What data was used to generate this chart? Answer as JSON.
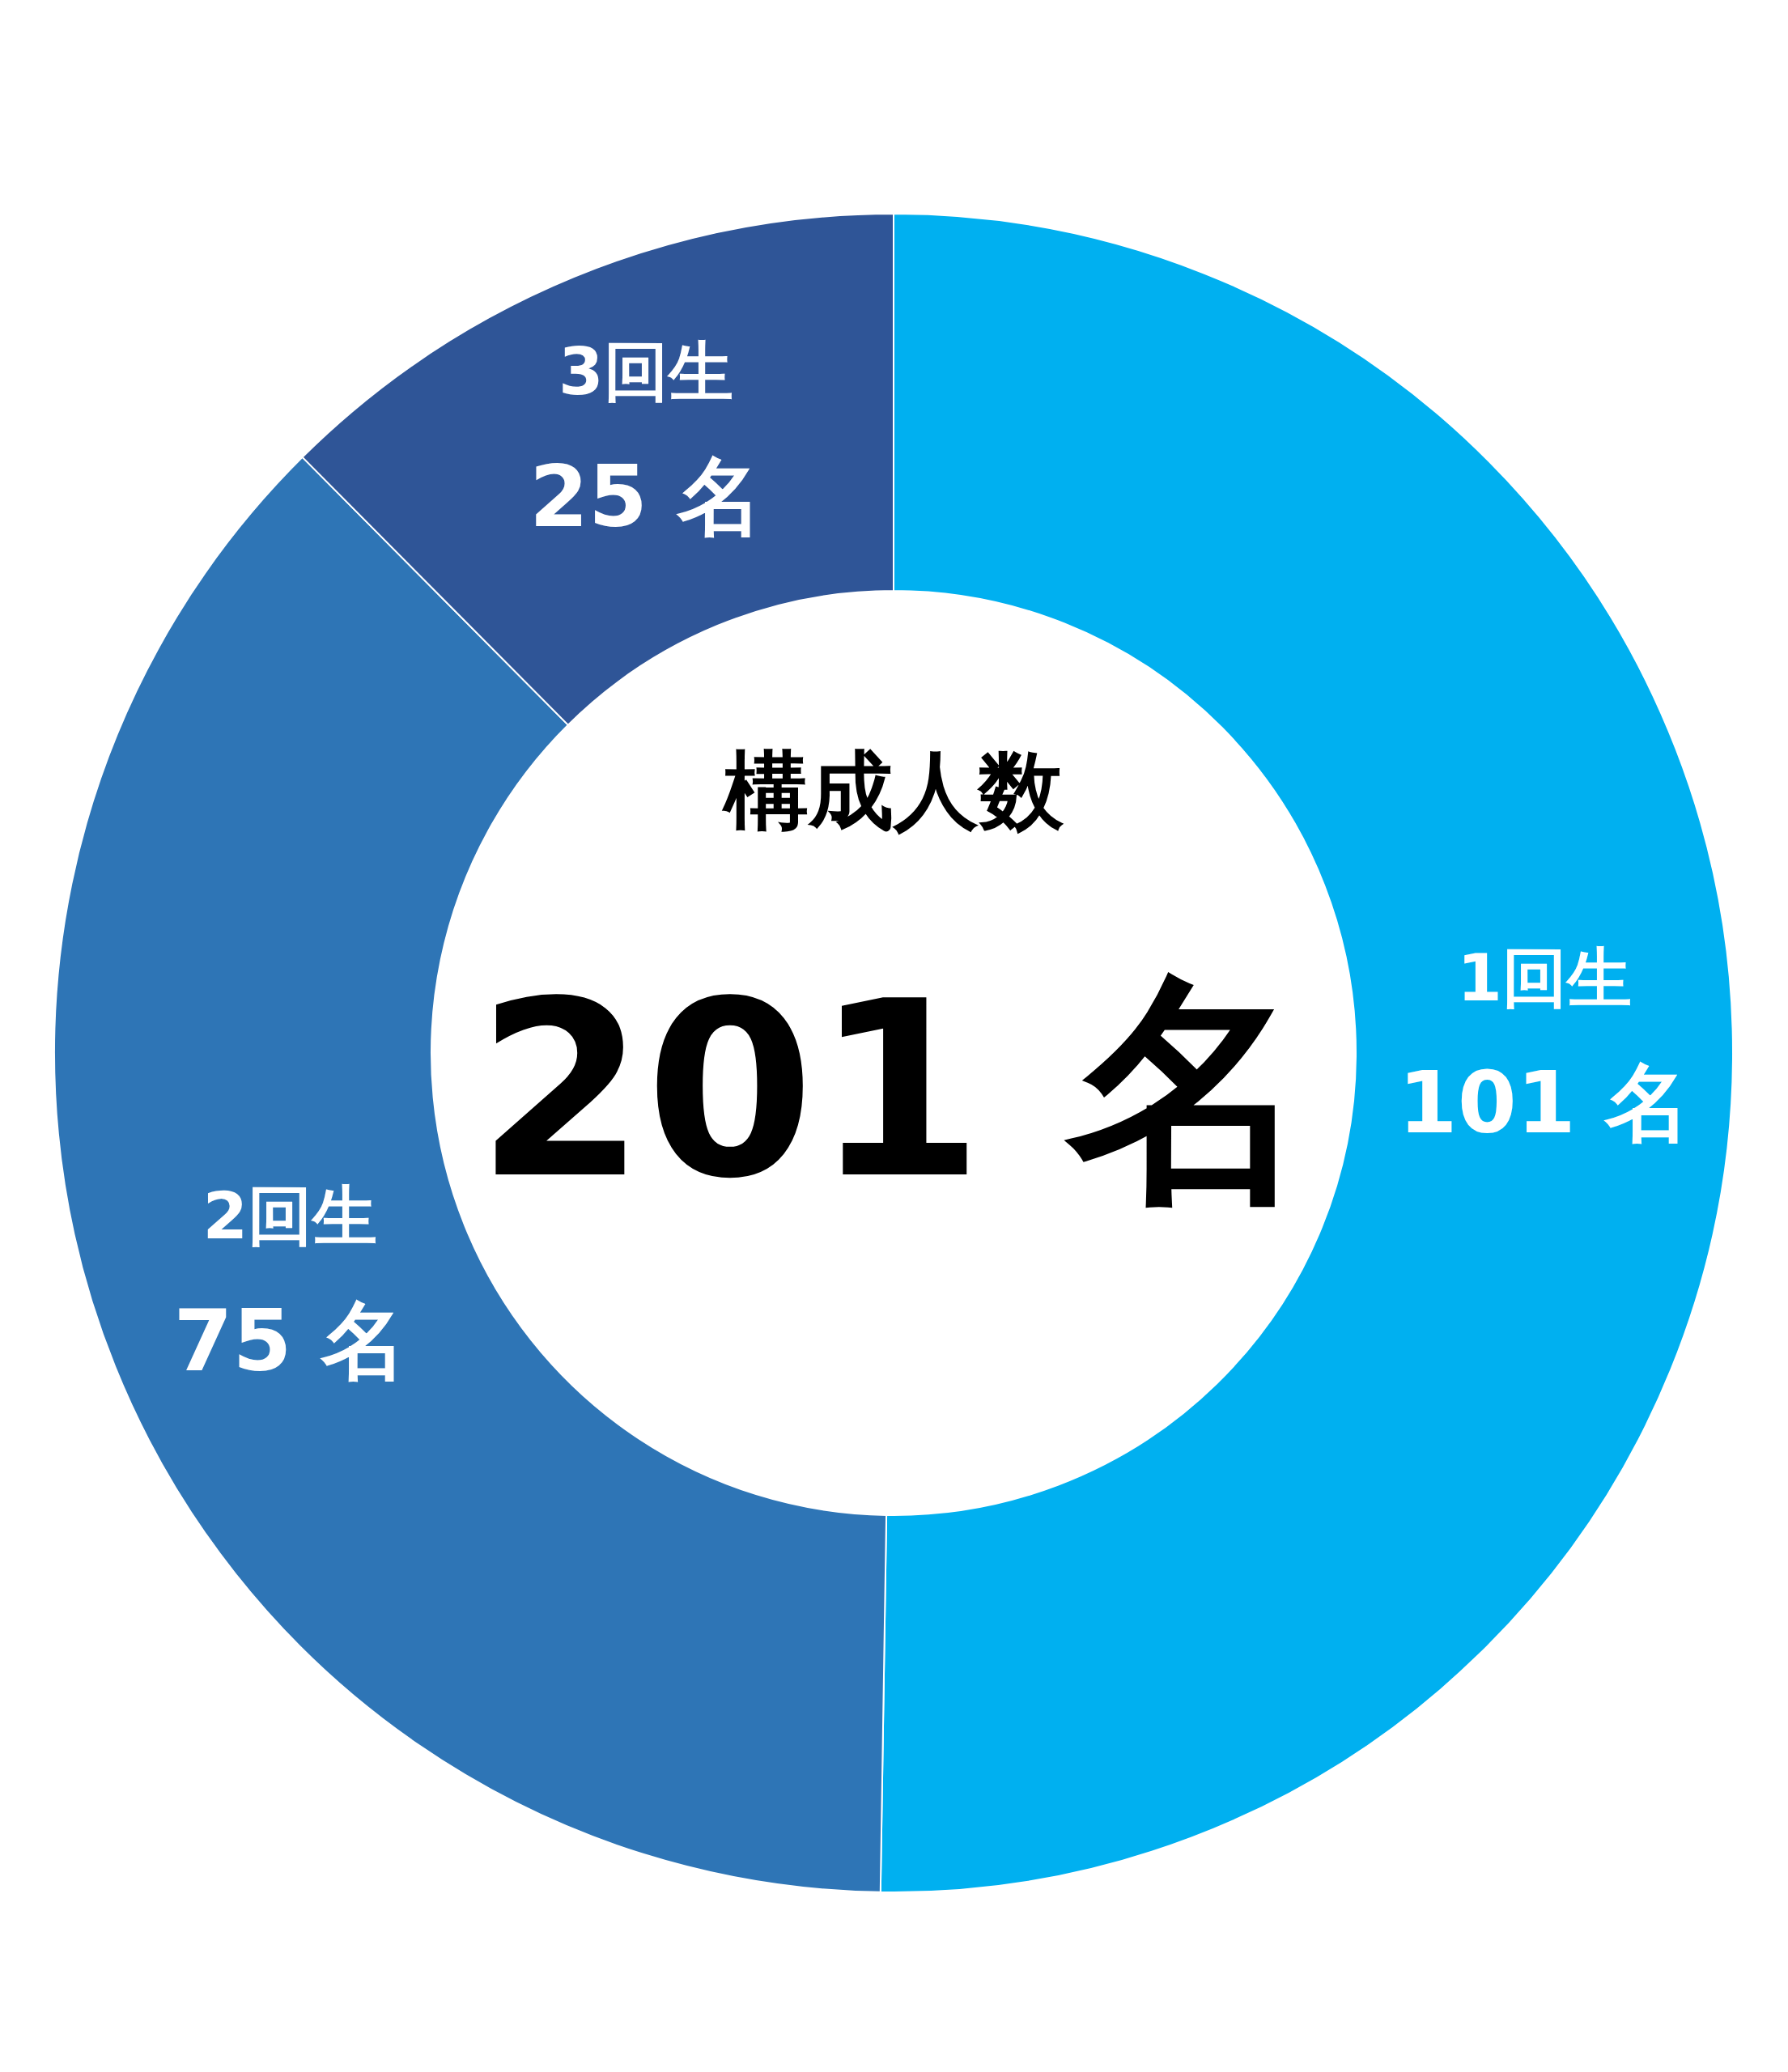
{
  "chart_data": {
    "type": "donut",
    "categories": [
      "1回生",
      "2回生",
      "3回生"
    ],
    "values": [
      101,
      75,
      25
    ],
    "colors": [
      "#00b0f0",
      "#2e75b6",
      "#2f5597"
    ],
    "value_labels": [
      "101 名",
      "75 名",
      "25 名"
    ],
    "annotations": [
      "構成人数",
      "201 名"
    ]
  }
}
